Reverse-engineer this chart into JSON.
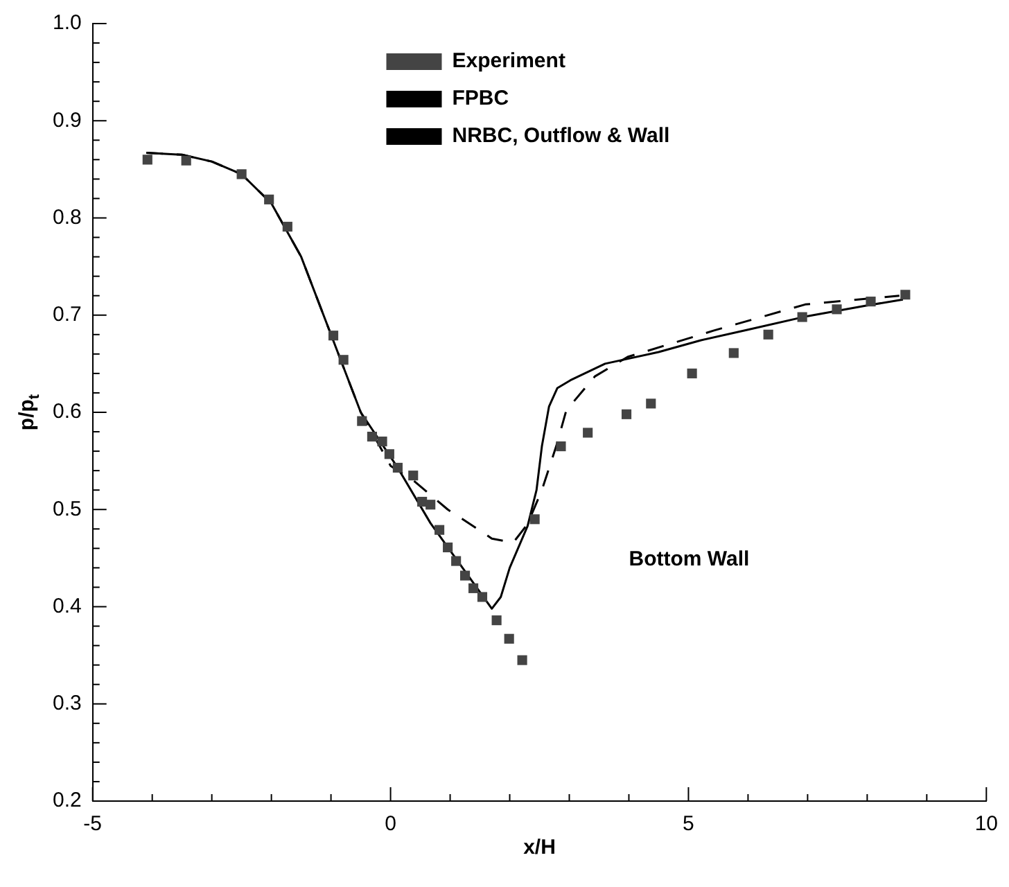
{
  "chart_data": {
    "type": "line",
    "xlabel": "x/H",
    "ylabel": "p/p$_{t}$",
    "legend": "top right",
    "grid": false,
    "xlim": [
      -5,
      10
    ],
    "ylim": [
      0.2,
      1.0
    ],
    "xticks": [
      -5,
      {
        "value": -4,
        "label": null
      },
      {
        "value": -3,
        "label": null
      },
      {
        "value": -2,
        "label": null
      },
      {
        "value": -1,
        "label": null
      },
      0,
      {
        "value": 1,
        "label": null
      },
      {
        "value": 2,
        "label": null
      },
      {
        "value": 3,
        "label": null
      },
      {
        "value": 4,
        "label": null
      },
      5,
      {
        "value": 6,
        "label": null
      },
      {
        "value": 7,
        "label": null
      },
      {
        "value": 8,
        "label": null
      },
      {
        "value": 9,
        "label": null
      },
      10
    ],
    "yticks": [
      {
        "value": 0.2,
        "label": "0.2"
      },
      {
        "value": 0.22,
        "label": null
      },
      {
        "value": 0.24,
        "label": null
      },
      {
        "value": 0.26,
        "label": null
      },
      {
        "value": 0.28,
        "label": null
      },
      {
        "value": 0.3,
        "label": "0.3"
      },
      {
        "value": 0.32,
        "label": null
      },
      {
        "value": 0.34,
        "label": null
      },
      {
        "value": 0.36,
        "label": null
      },
      {
        "value": 0.38,
        "label": null
      },
      {
        "value": 0.4,
        "label": "0.4"
      },
      {
        "value": 0.42,
        "label": null
      },
      {
        "value": 0.44,
        "label": null
      },
      {
        "value": 0.46,
        "label": null
      },
      {
        "value": 0.48,
        "label": null
      },
      {
        "value": 0.5,
        "label": "0.5"
      },
      {
        "value": 0.52,
        "label": null
      },
      {
        "value": 0.54,
        "label": null
      },
      {
        "value": 0.56,
        "label": null
      },
      {
        "value": 0.58,
        "label": null
      },
      {
        "value": 0.6,
        "label": "0.6"
      },
      {
        "value": 0.62,
        "label": null
      },
      {
        "value": 0.64,
        "label": null
      },
      {
        "value": 0.66,
        "label": null
      },
      {
        "value": 0.68,
        "label": null
      },
      {
        "value": 0.7,
        "label": "0.7"
      },
      {
        "value": 0.72,
        "label": null
      },
      {
        "value": 0.74,
        "label": null
      },
      {
        "value": 0.76,
        "label": null
      },
      {
        "value": 0.78,
        "label": null
      },
      {
        "value": 0.8,
        "label": "0.8"
      },
      {
        "value": 0.82,
        "label": null
      },
      {
        "value": 0.84,
        "label": null
      },
      {
        "value": 0.86,
        "label": null
      },
      {
        "value": 0.88,
        "label": null
      },
      {
        "value": 0.9,
        "label": "0.9"
      },
      {
        "value": 0.92,
        "label": null
      },
      {
        "value": 0.94,
        "label": null
      },
      {
        "value": 0.96,
        "label": null
      },
      {
        "value": 0.98,
        "label": null
      },
      {
        "value": 1.0,
        "label": "1.0"
      }
    ],
    "annotations": [
      "Bottom Wall"
    ],
    "series": [
      {
        "name": "Experiment",
        "type": "scatter",
        "marker": "square",
        "color": "#444444",
        "x": [
          -4.08,
          -3.43,
          -2.5,
          -2.04,
          -1.73,
          -0.96,
          -0.79,
          -0.48,
          -0.31,
          -0.14,
          -0.02,
          0.12,
          0.38,
          0.53,
          0.67,
          0.82,
          0.96,
          1.1,
          1.25,
          1.39,
          1.54,
          1.78,
          1.99,
          2.21,
          2.42,
          2.86,
          3.31,
          3.96,
          4.37,
          5.06,
          5.76,
          6.34,
          6.91,
          7.49,
          8.06,
          8.64
        ],
        "values": [
          0.86,
          0.859,
          0.845,
          0.819,
          0.791,
          0.679,
          0.654,
          0.591,
          0.575,
          0.57,
          0.557,
          0.543,
          0.535,
          0.508,
          0.505,
          0.479,
          0.461,
          0.447,
          0.432,
          0.419,
          0.41,
          0.386,
          0.367,
          0.345,
          0.49,
          0.565,
          0.579,
          0.598,
          0.609,
          0.64,
          0.661,
          0.68,
          0.698,
          0.706,
          0.714,
          0.721
        ]
      },
      {
        "name": "FPBC",
        "type": "line",
        "marker": "none",
        "line_style": "dashed",
        "color": "#000000",
        "x": [
          -4.1,
          -3.5,
          -3,
          -2.5,
          -2,
          -1.5,
          -1,
          -0.5,
          0,
          0.38,
          0.96,
          1.56,
          1.7,
          2.06,
          2.3,
          2.54,
          2.78,
          2.95,
          3.43,
          3.98,
          5.42,
          6.96,
          8.54
        ],
        "values": [
          0.867,
          0.865,
          0.858,
          0.845,
          0.815,
          0.76,
          0.68,
          0.6,
          0.545,
          0.53,
          0.5,
          0.476,
          0.47,
          0.466,
          0.485,
          0.52,
          0.565,
          0.602,
          0.637,
          0.657,
          0.684,
          0.711,
          0.72
        ]
      },
      {
        "name": "NRBC, Outflow & Wall",
        "type": "line",
        "marker": "none",
        "line_style": "solid",
        "color": "#000000",
        "x": [
          -4.1,
          -3.5,
          -3,
          -2.5,
          -2,
          -1.5,
          -1,
          -0.5,
          0.12,
          0.67,
          1.5,
          1.7,
          1.85,
          2.0,
          2.3,
          2.45,
          2.54,
          2.66,
          2.8,
          3.02,
          3.6,
          4.5,
          5.2,
          6,
          7,
          8,
          8.6
        ],
        "values": [
          0.867,
          0.865,
          0.858,
          0.845,
          0.815,
          0.76,
          0.68,
          0.6,
          0.543,
          0.486,
          0.415,
          0.398,
          0.41,
          0.44,
          0.483,
          0.52,
          0.565,
          0.606,
          0.625,
          0.633,
          0.65,
          0.662,
          0.674,
          0.685,
          0.699,
          0.71,
          0.716
        ]
      }
    ]
  }
}
